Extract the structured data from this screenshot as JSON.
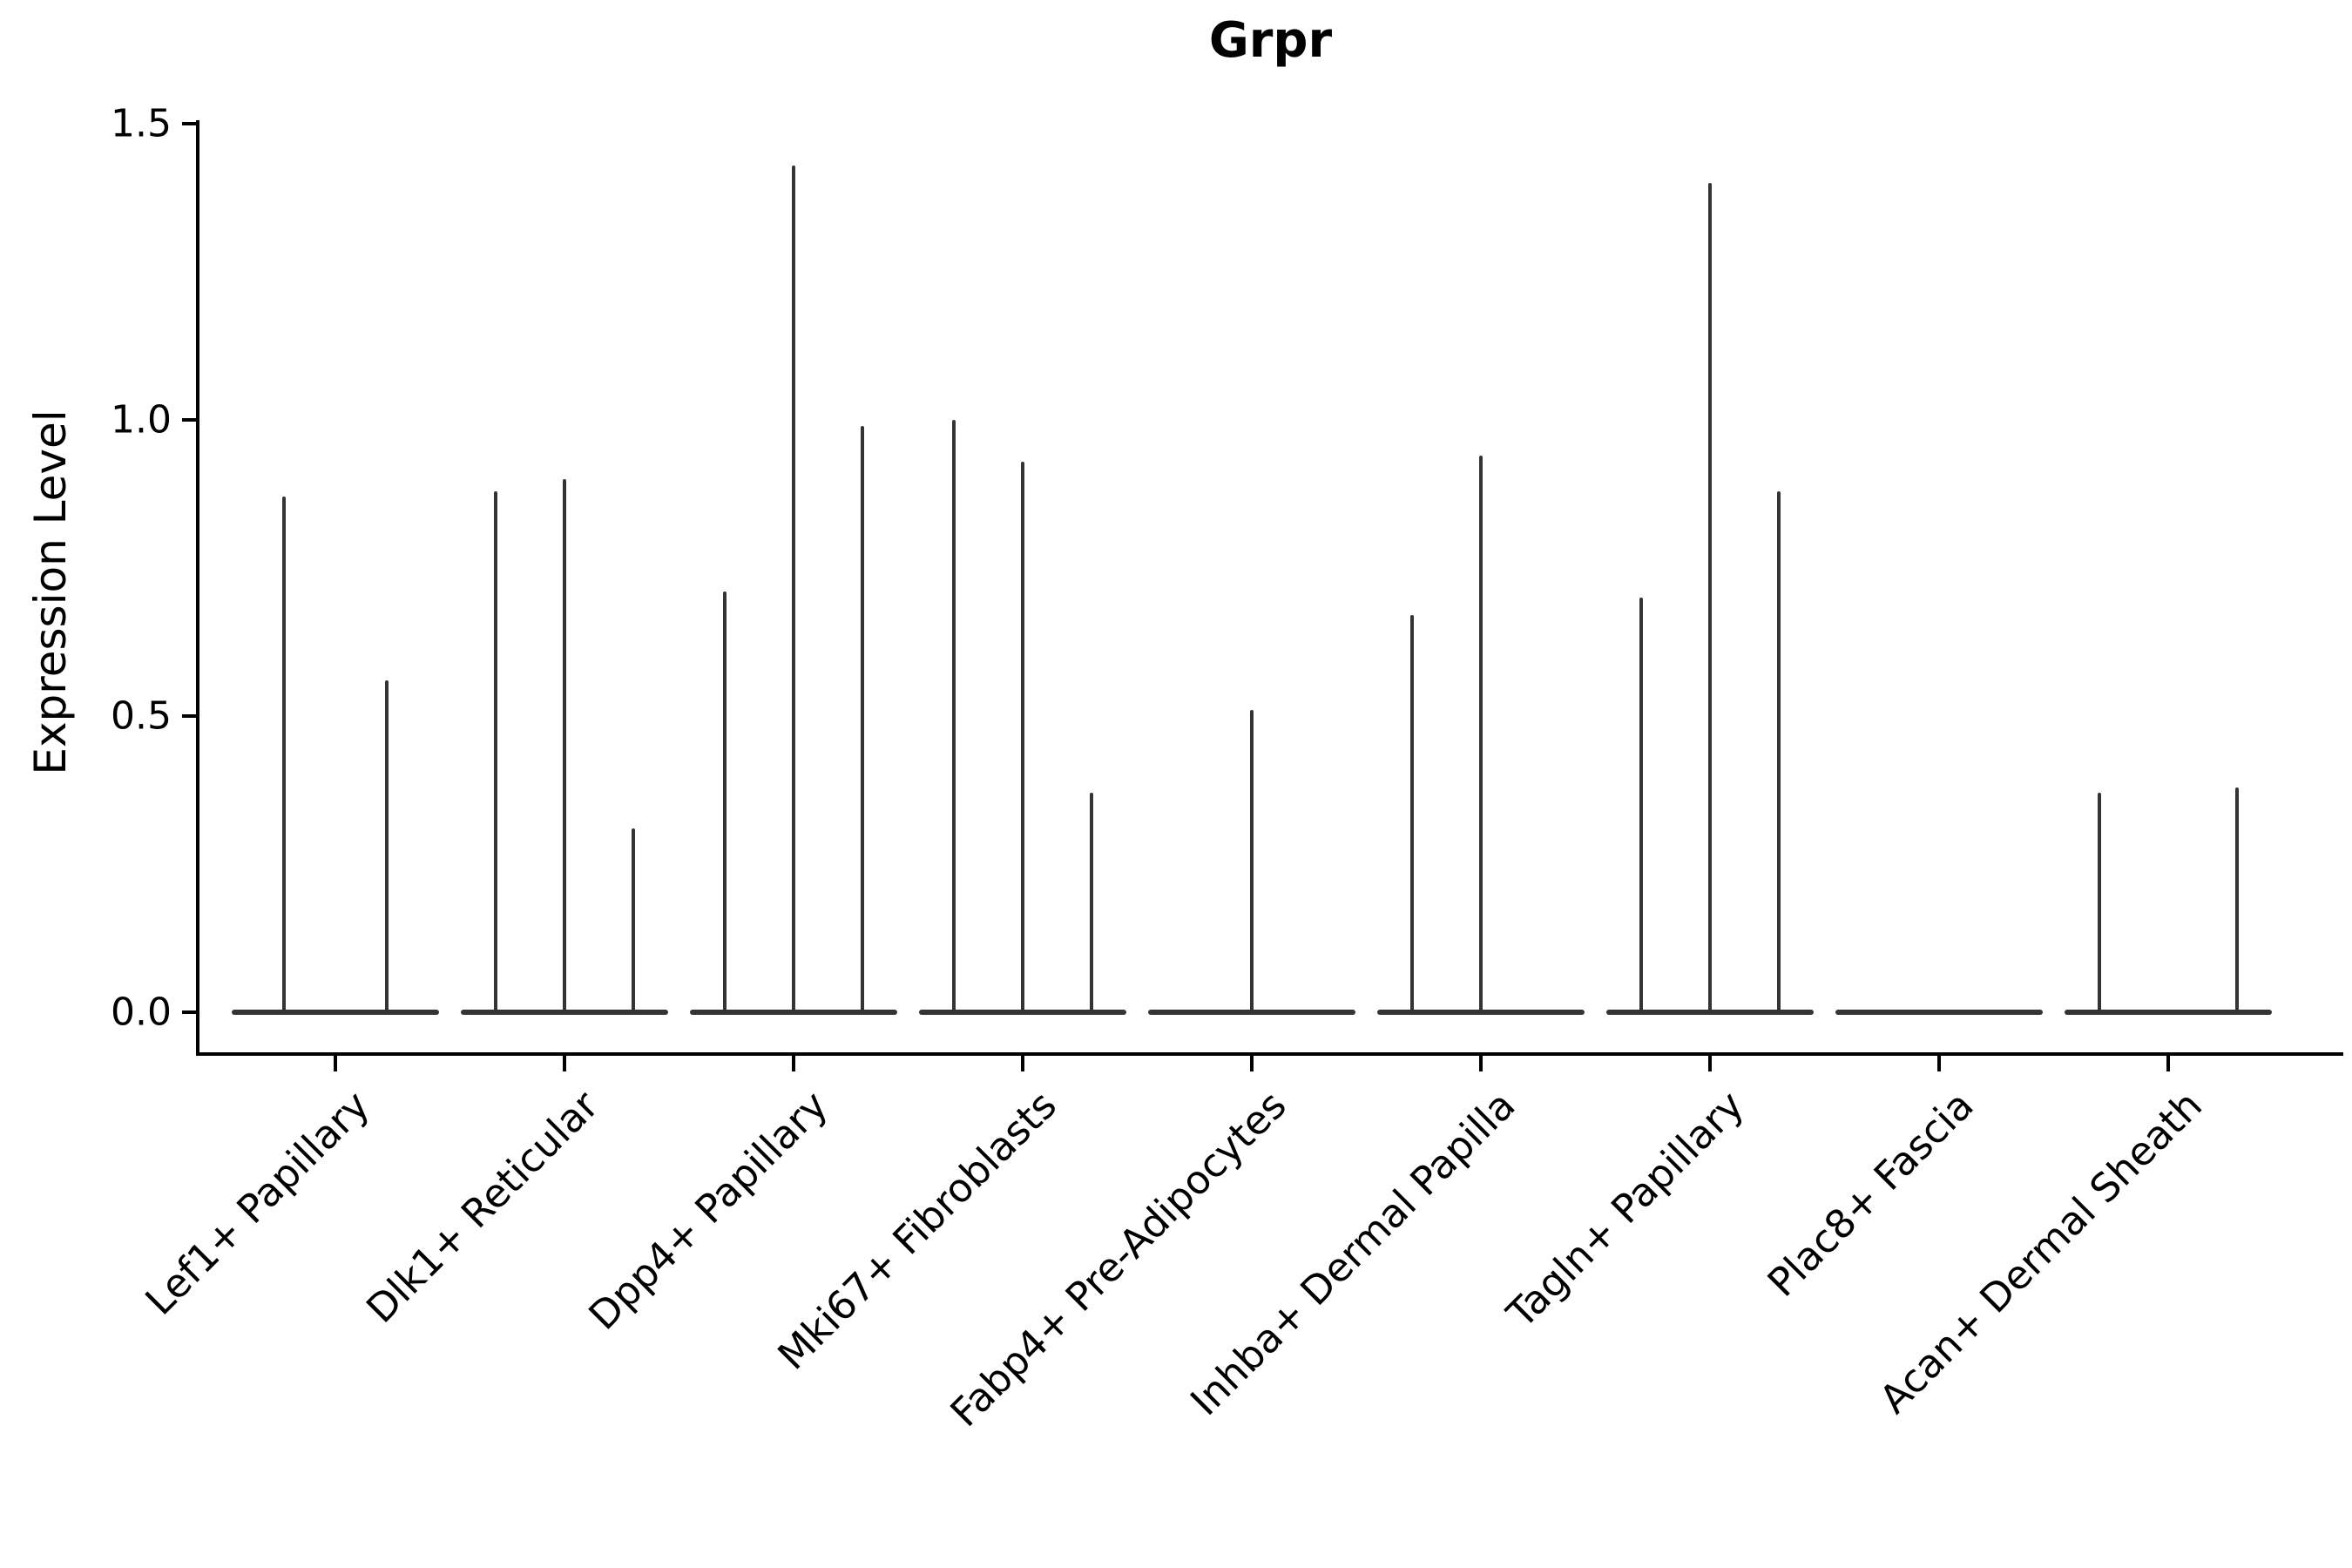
{
  "chart_data": {
    "type": "violin",
    "title": "Grpr",
    "ylabel": "Expression Level",
    "xlabel": "",
    "ylim": [
      -0.07,
      1.5
    ],
    "ytick_labels": [
      "0.0",
      "0.5",
      "1.0",
      "1.5"
    ],
    "ytick_values": [
      0.0,
      0.5,
      1.0,
      1.5
    ],
    "grid": false,
    "legend_position": "none",
    "violin_color": "#343434",
    "axis_color": "#000000",
    "note": "Needle-like violins: nearly all cells at 0 (flat base), thin spikes mark sub-violin maxima. offset = px from category center, value = expression level at spike top.",
    "categories": [
      {
        "label": "Lef1+ Papillary",
        "needles": [
          {
            "offset": -59,
            "value": 0.87
          },
          {
            "offset": 59,
            "value": 0.56
          }
        ]
      },
      {
        "label": "Dlk1+ Reticular",
        "needles": [
          {
            "offset": -79,
            "value": 0.88
          },
          {
            "offset": 0,
            "value": 0.9
          },
          {
            "offset": 79,
            "value": 0.31
          }
        ]
      },
      {
        "label": "Dpp4+ Papillary",
        "needles": [
          {
            "offset": -79,
            "value": 0.71
          },
          {
            "offset": 0,
            "value": 1.43
          },
          {
            "offset": 79,
            "value": 0.99
          }
        ]
      },
      {
        "label": "Mki67+ Fibroblasts",
        "needles": [
          {
            "offset": -79,
            "value": 1.0
          },
          {
            "offset": 0,
            "value": 0.93
          },
          {
            "offset": 79,
            "value": 0.37
          }
        ]
      },
      {
        "label": "Fabp4+ Pre-Adipocytes",
        "needles": [
          {
            "offset": 0,
            "value": 0.51
          }
        ]
      },
      {
        "label": "Inhba+ Dermal Papilla",
        "needles": [
          {
            "offset": -79,
            "value": 0.67
          },
          {
            "offset": 0,
            "value": 0.94
          }
        ]
      },
      {
        "label": "Tagln+ Papillary",
        "needles": [
          {
            "offset": -79,
            "value": 0.7
          },
          {
            "offset": 0,
            "value": 1.4
          },
          {
            "offset": 79,
            "value": 0.88
          }
        ]
      },
      {
        "label": "Plac8+ Fascia",
        "needles": []
      },
      {
        "label": "Acan+ Dermal Sheath",
        "needles": [
          {
            "offset": -79,
            "value": 0.37
          },
          {
            "offset": 79,
            "value": 0.38
          }
        ]
      }
    ]
  }
}
